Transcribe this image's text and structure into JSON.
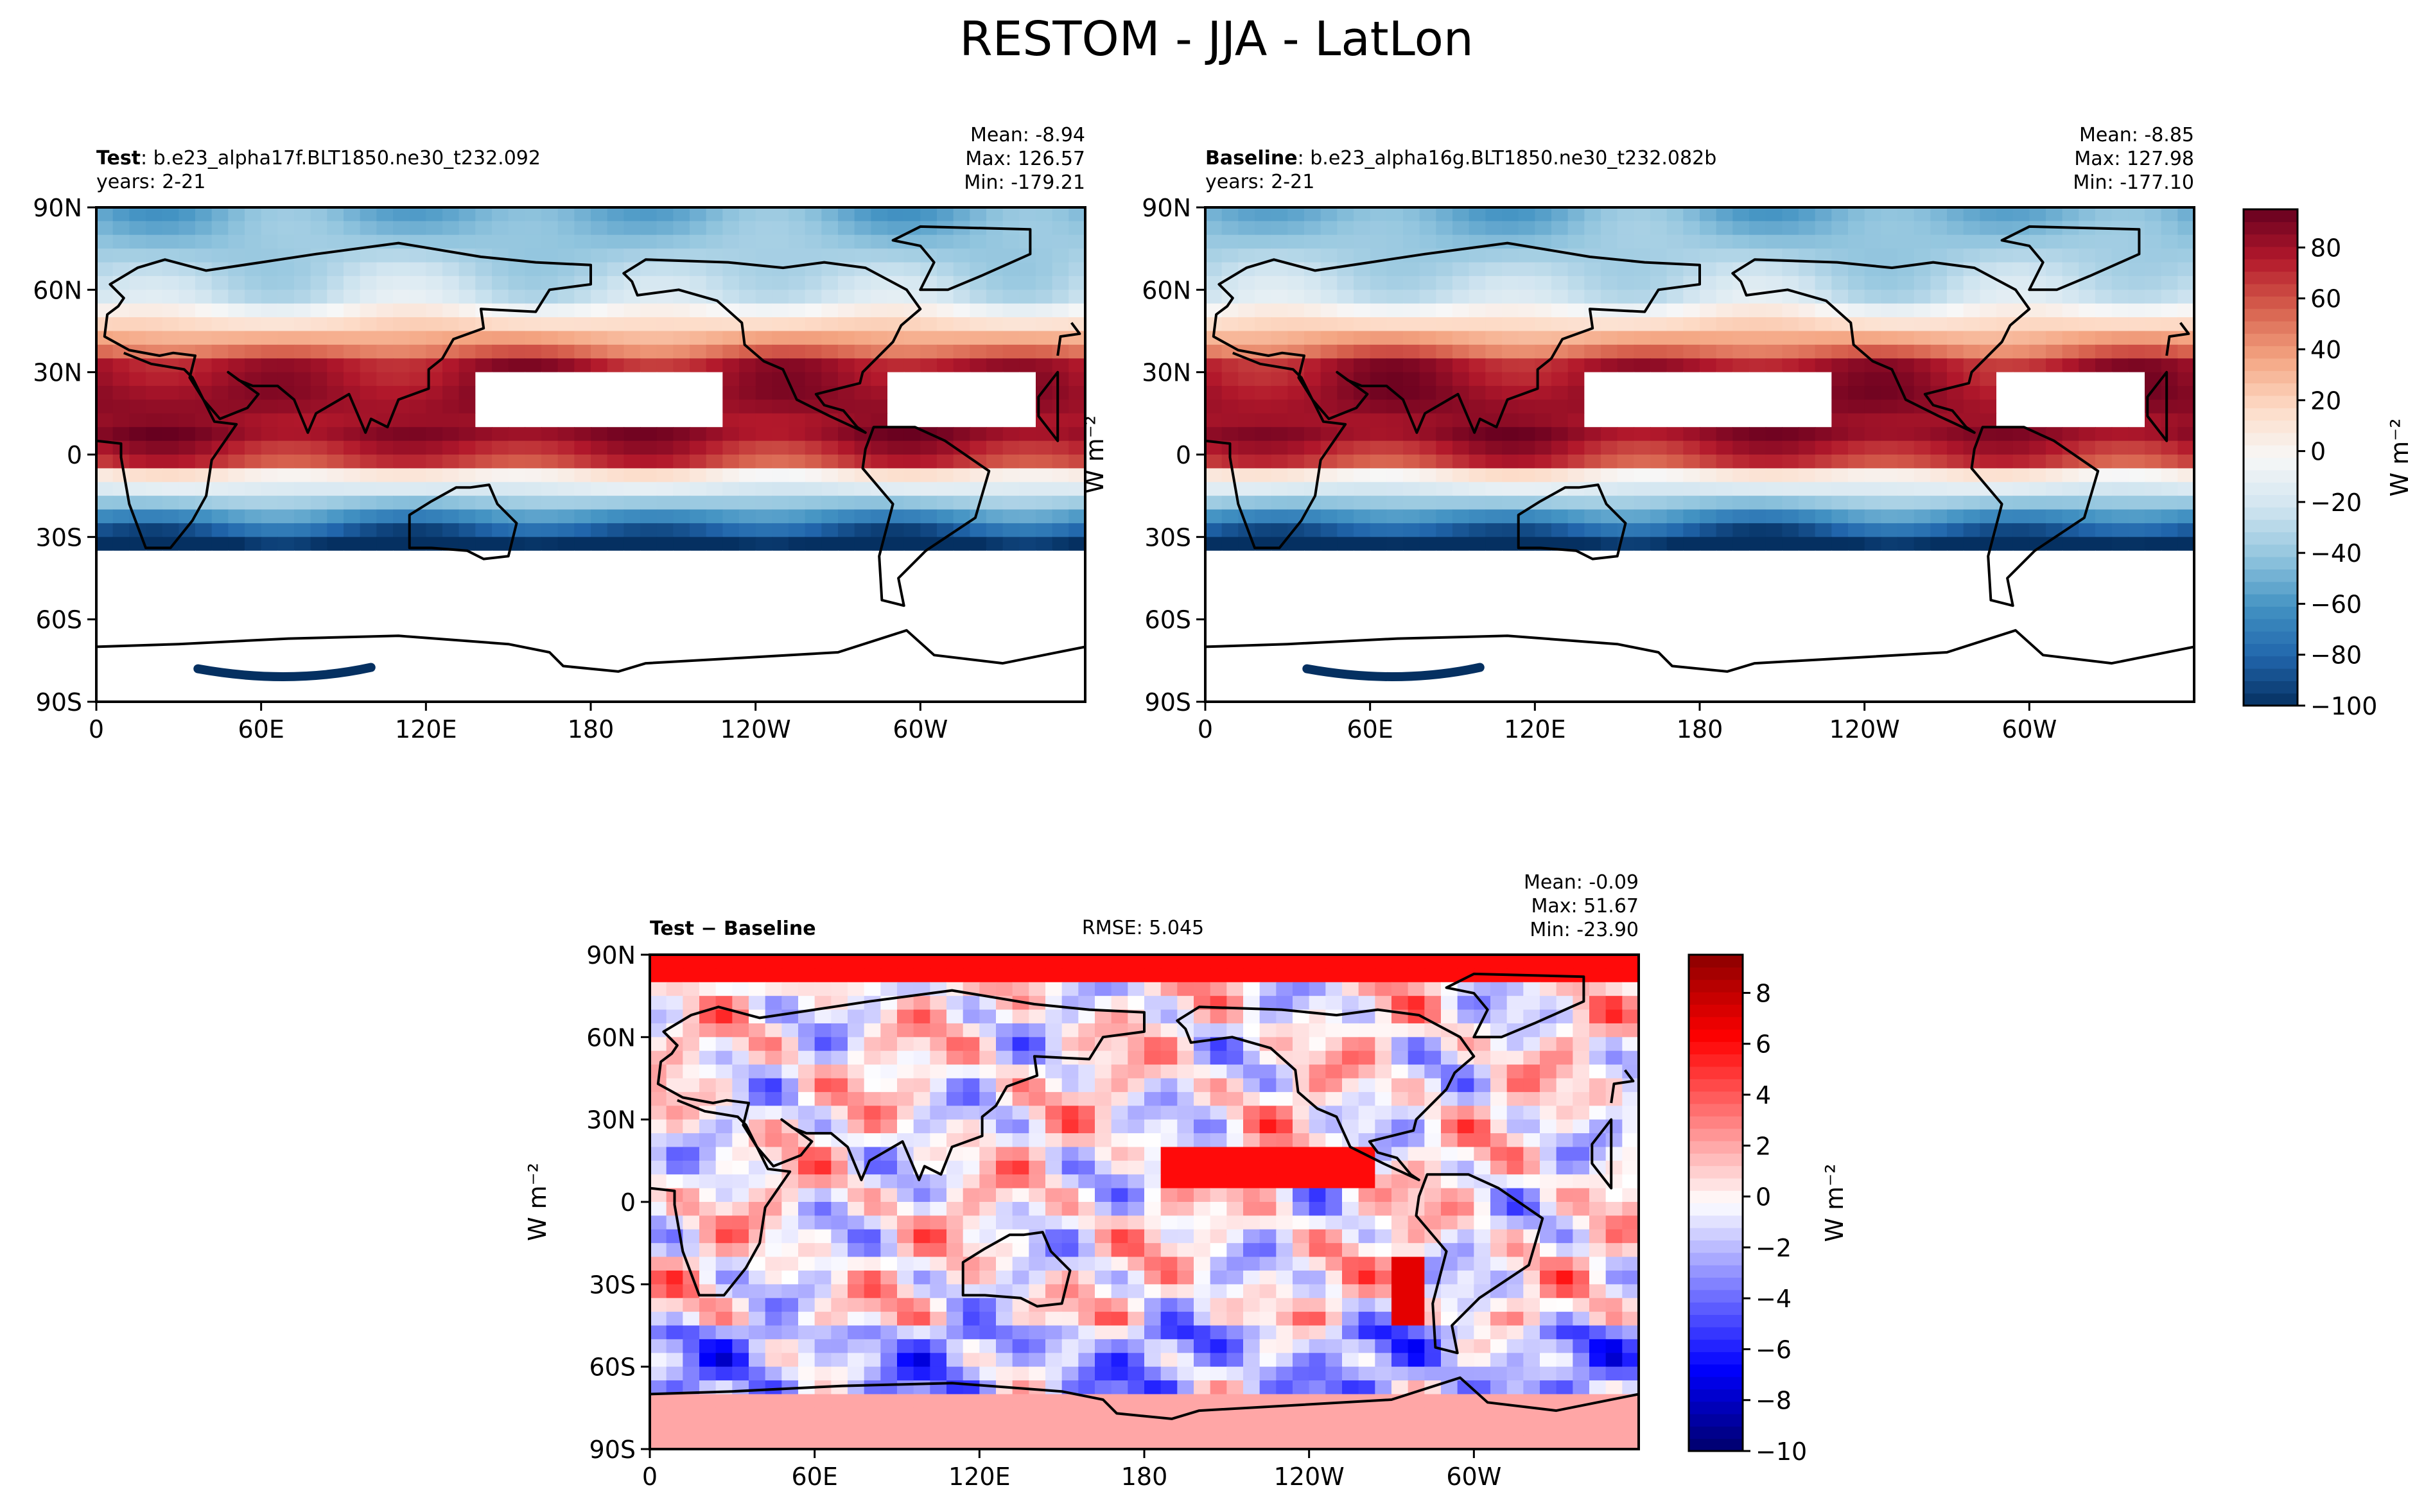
{
  "figure": {
    "title": "RESTOM - JJA - LatLon"
  },
  "colors": {
    "rdbu": [
      "#053061",
      "#2166ac",
      "#4393c3",
      "#92c5de",
      "#d1e5f0",
      "#f7f7f7",
      "#fddbc7",
      "#f4a582",
      "#d6604d",
      "#b2182b",
      "#67001f"
    ],
    "bwr": [
      "#00006a",
      "#0000ff",
      "#7f7fff",
      "#ffffff",
      "#ff7f7f",
      "#ff0000",
      "#8b0000"
    ],
    "coastline": "#000000",
    "mask": "#ffffff"
  },
  "chart_data": [
    {
      "id": "test",
      "type": "heatmap",
      "panel_label_bold": "Test",
      "panel_label_rest": ": b.e23_alpha17f.BLT1850.ne30_t232.092",
      "years": "years: 2-21",
      "stats": {
        "mean": "Mean: -8.94",
        "max": "Max: 126.57",
        "min": "Min: -179.21"
      },
      "colormap": "RdBu_r",
      "ylabel": "",
      "x_ticks": [
        "0",
        "60E",
        "120E",
        "180",
        "120W",
        "60W"
      ],
      "x_tick_values": [
        0,
        60,
        120,
        180,
        240,
        300
      ],
      "y_ticks": [
        "90N",
        "60N",
        "30N",
        "0",
        "30S",
        "60S",
        "90S"
      ],
      "y_tick_values": [
        90,
        60,
        30,
        0,
        -30,
        -60,
        -90
      ],
      "xlim": [
        0,
        360
      ],
      "ylim": [
        -90,
        90
      ],
      "units": "W m$^{-2}$",
      "clim": [
        -100,
        95
      ]
    },
    {
      "id": "baseline",
      "type": "heatmap",
      "panel_label_bold": "Baseline",
      "panel_label_rest": ": b.e23_alpha16g.BLT1850.ne30_t232.082b",
      "years": "years: 2-21",
      "stats": {
        "mean": "Mean: -8.85",
        "max": "Max: 127.98",
        "min": "Min: -177.10"
      },
      "colormap": "RdBu_r",
      "ylabel": "W m⁻²",
      "x_ticks": [
        "0",
        "60E",
        "120E",
        "180",
        "120W",
        "60W"
      ],
      "x_tick_values": [
        0,
        60,
        120,
        180,
        240,
        300
      ],
      "y_ticks": [
        "90N",
        "60N",
        "30N",
        "0",
        "30S",
        "60S",
        "90S"
      ],
      "y_tick_values": [
        90,
        60,
        30,
        0,
        -30,
        -60,
        -90
      ],
      "xlim": [
        0,
        360
      ],
      "ylim": [
        -90,
        90
      ],
      "clim": [
        -100,
        95
      ]
    },
    {
      "id": "diff",
      "type": "heatmap",
      "panel_label_bold": "Test − Baseline",
      "rmse": "RMSE: 5.045",
      "stats": {
        "mean": "Mean: -0.09",
        "max": "Max: 51.67",
        "min": "Min: -23.90"
      },
      "colormap": "bwr",
      "ylabel": "W m⁻²",
      "x_ticks": [
        "0",
        "60E",
        "120E",
        "180",
        "120W",
        "60W"
      ],
      "x_tick_values": [
        0,
        60,
        120,
        180,
        240,
        300
      ],
      "y_ticks": [
        "90N",
        "60N",
        "30N",
        "0",
        "30S",
        "60S",
        "90S"
      ],
      "y_tick_values": [
        90,
        60,
        30,
        0,
        -30,
        -60,
        -90
      ],
      "xlim": [
        0,
        360
      ],
      "ylim": [
        -90,
        90
      ],
      "clim": [
        -10,
        9.5
      ]
    }
  ],
  "colorbars": [
    {
      "id": "cbar-main",
      "ticks": [
        "−100",
        "−80",
        "−60",
        "−40",
        "−20",
        "0",
        "20",
        "40",
        "60",
        "80"
      ],
      "tick_values": [
        -100,
        -80,
        -60,
        -40,
        -20,
        0,
        20,
        40,
        60,
        80
      ],
      "vmin": -100,
      "vmax": 95,
      "label": "W m⁻²",
      "colormap": "RdBu_r"
    },
    {
      "id": "cbar-diff",
      "ticks": [
        "−10",
        "−8",
        "−6",
        "−4",
        "−2",
        "0",
        "2",
        "4",
        "6",
        "8"
      ],
      "tick_values": [
        -10,
        -8,
        -6,
        -4,
        -2,
        0,
        2,
        4,
        6,
        8
      ],
      "vmin": -10,
      "vmax": 9.5,
      "label": "W m⁻²",
      "colormap": "bwr"
    }
  ]
}
